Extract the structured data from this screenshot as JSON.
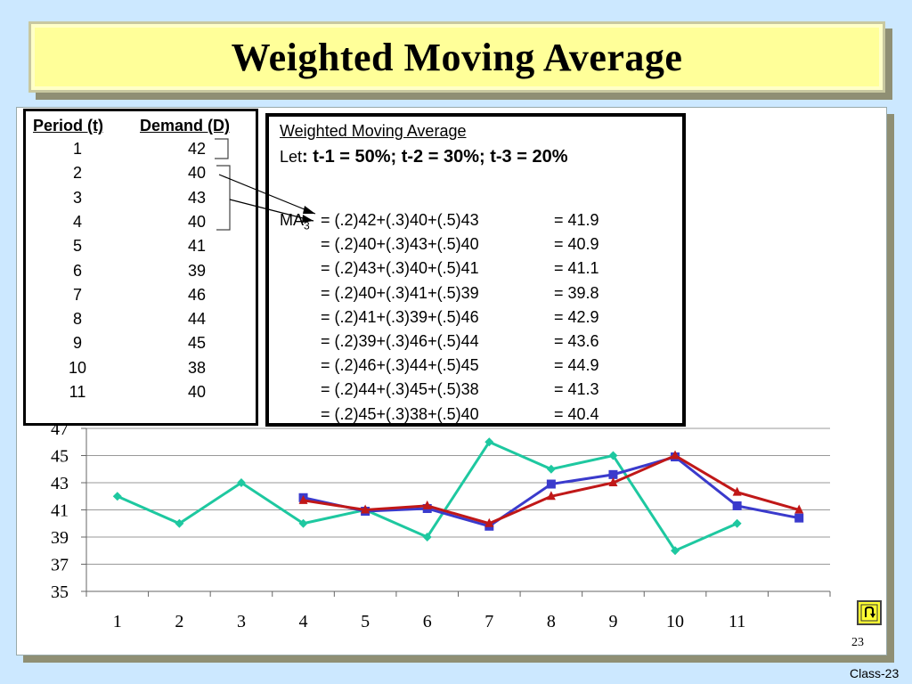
{
  "slide": {
    "title": "Weighted Moving Average",
    "page_number": "23",
    "footer": "Class-23"
  },
  "table": {
    "headers": [
      "Period (t)",
      "Demand (D)"
    ],
    "rows": [
      [
        "1",
        "42"
      ],
      [
        "2",
        "40"
      ],
      [
        "3",
        "43"
      ],
      [
        "4",
        "40"
      ],
      [
        "5",
        "41"
      ],
      [
        "6",
        "39"
      ],
      [
        "7",
        "46"
      ],
      [
        "8",
        "44"
      ],
      [
        "9",
        "45"
      ],
      [
        "10",
        "38"
      ],
      [
        "11",
        "40"
      ]
    ]
  },
  "formula": {
    "title": "Weighted Moving Average",
    "let_prefix": "Let",
    "let_body": ":  t-1 = 50%; t-2 = 30%;  t-3 = 20%",
    "ma_label": "MA",
    "ma_sub": "3",
    "lines": [
      {
        "expr": "= (.2)42+(.3)40+(.5)43",
        "result": "= 41.9"
      },
      {
        "expr": "= (.2)40+(.3)43+(.5)40",
        "result": "= 40.9"
      },
      {
        "expr": "= (.2)43+(.3)40+(.5)41",
        "result": "= 41.1"
      },
      {
        "expr": "= (.2)40+(.3)41+(.5)39",
        "result": "= 39.8"
      },
      {
        "expr": "= (.2)41+(.3)39+(.5)46",
        "result": "= 42.9"
      },
      {
        "expr": "= (.2)39+(.3)46+(.5)44",
        "result": "= 43.6"
      },
      {
        "expr": "= (.2)46+(.3)44+(.5)45",
        "result": "= 44.9"
      },
      {
        "expr": "= (.2)44+(.3)45+(.5)38",
        "result": "= 41.3"
      },
      {
        "expr": "= (.2)45+(.3)38+(.5)40",
        "result": "= 40.4"
      }
    ]
  },
  "chart_data": {
    "type": "line",
    "x_tick_labels": [
      "1",
      "2",
      "3",
      "4",
      "5",
      "6",
      "7",
      "8",
      "9",
      "10",
      "11",
      ""
    ],
    "ylim": [
      35,
      47
    ],
    "y_ticks": [
      "35",
      "37",
      "39",
      "41",
      "43",
      "45",
      "47"
    ],
    "grid": "horizontal",
    "series": [
      {
        "key": "demand",
        "color": "#1ec8a0",
        "marker": "diamond",
        "values": [
          42,
          40,
          43,
          40,
          41,
          39,
          46,
          44,
          45,
          38,
          40,
          null
        ]
      },
      {
        "key": "wma",
        "color": "#3a3acc",
        "marker": "square",
        "values": [
          null,
          null,
          null,
          41.9,
          40.9,
          41.1,
          39.8,
          42.9,
          43.6,
          44.9,
          41.3,
          40.4
        ]
      },
      {
        "key": "other",
        "color": "#c01818",
        "marker": "triangle",
        "values": [
          null,
          null,
          null,
          41.7,
          41.0,
          41.3,
          40.0,
          42.0,
          43.0,
          45.0,
          42.3,
          41.0
        ]
      }
    ]
  },
  "icons": {
    "home": "return-arrow-icon"
  }
}
